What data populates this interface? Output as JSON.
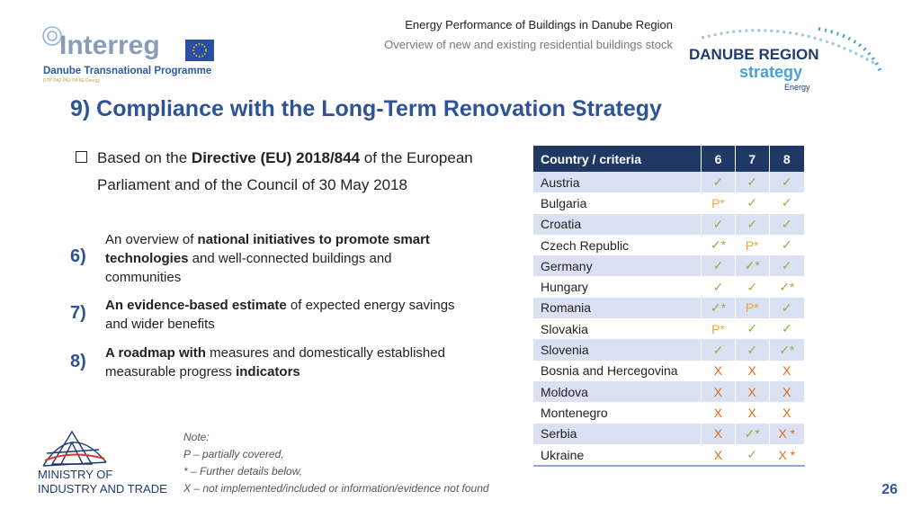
{
  "header": {
    "line1": "Energy Performance of Buildings in Danube Region",
    "line2": "Overview of new and existing residential buildings stock"
  },
  "logos": {
    "interreg": "Interreg",
    "programme": "Danube Transnational Programme",
    "programme_small": "DTP PA2 PA3 PA 6E Energy",
    "strategy_line1": "DANUBE REGION",
    "strategy_line2": "strategy",
    "strategy_line3": "Energy",
    "ministry_line1": "MINISTRY OF",
    "ministry_line2": "INDUSTRY AND TRADE"
  },
  "title": "9) Compliance with the Long-Term Renovation Strategy",
  "intro": [
    "Based on the ",
    "Directive (EU) 2018/844",
    " of the European Parliament and of the Council of 30 May 2018"
  ],
  "items": [
    {
      "number": "6)",
      "parts": [
        "An overview of ",
        "national initiatives to promote smart technologies",
        " and well-connected buildings and communities"
      ]
    },
    {
      "number": "7)",
      "parts": [
        "An evidence-based estimate",
        " of expected energy savings and wider benefits"
      ]
    },
    {
      "number": "8)",
      "parts": [
        "A roadmap with",
        " measures and domestically established measurable progress ",
        "indicators"
      ]
    }
  ],
  "note": [
    "Note:",
    "P – partially covered,",
    "* – Further details below,",
    "X – not implemented/included or information/evidence not found"
  ],
  "table": {
    "header": [
      "Country / criteria",
      "6",
      "7",
      "8"
    ],
    "rows": [
      [
        "Austria",
        "✓",
        "✓",
        "✓"
      ],
      [
        "Bulgaria",
        "P*",
        "✓",
        "✓"
      ],
      [
        "Croatia",
        "✓",
        "✓",
        "✓"
      ],
      [
        "Czech Republic",
        "✓*",
        "P*",
        "✓"
      ],
      [
        "Germany",
        "✓",
        "✓*",
        "✓"
      ],
      [
        "Hungary",
        "✓",
        "✓",
        "✓*"
      ],
      [
        "Romania",
        "✓*",
        "P*",
        "✓"
      ],
      [
        "Slovakia",
        "P*",
        "✓",
        "✓"
      ],
      [
        "Slovenia",
        "✓",
        "✓",
        "✓*"
      ],
      [
        "Bosnia and Hercegovina",
        "X",
        "X",
        "X"
      ],
      [
        "Moldova",
        "X",
        "X",
        "X"
      ],
      [
        "Montenegro",
        "X",
        "X",
        "X"
      ],
      [
        "Serbia",
        "X",
        "✓*",
        "X *"
      ],
      [
        "Ukraine",
        "X",
        "✓",
        "X *"
      ]
    ]
  },
  "page_number": 26
}
